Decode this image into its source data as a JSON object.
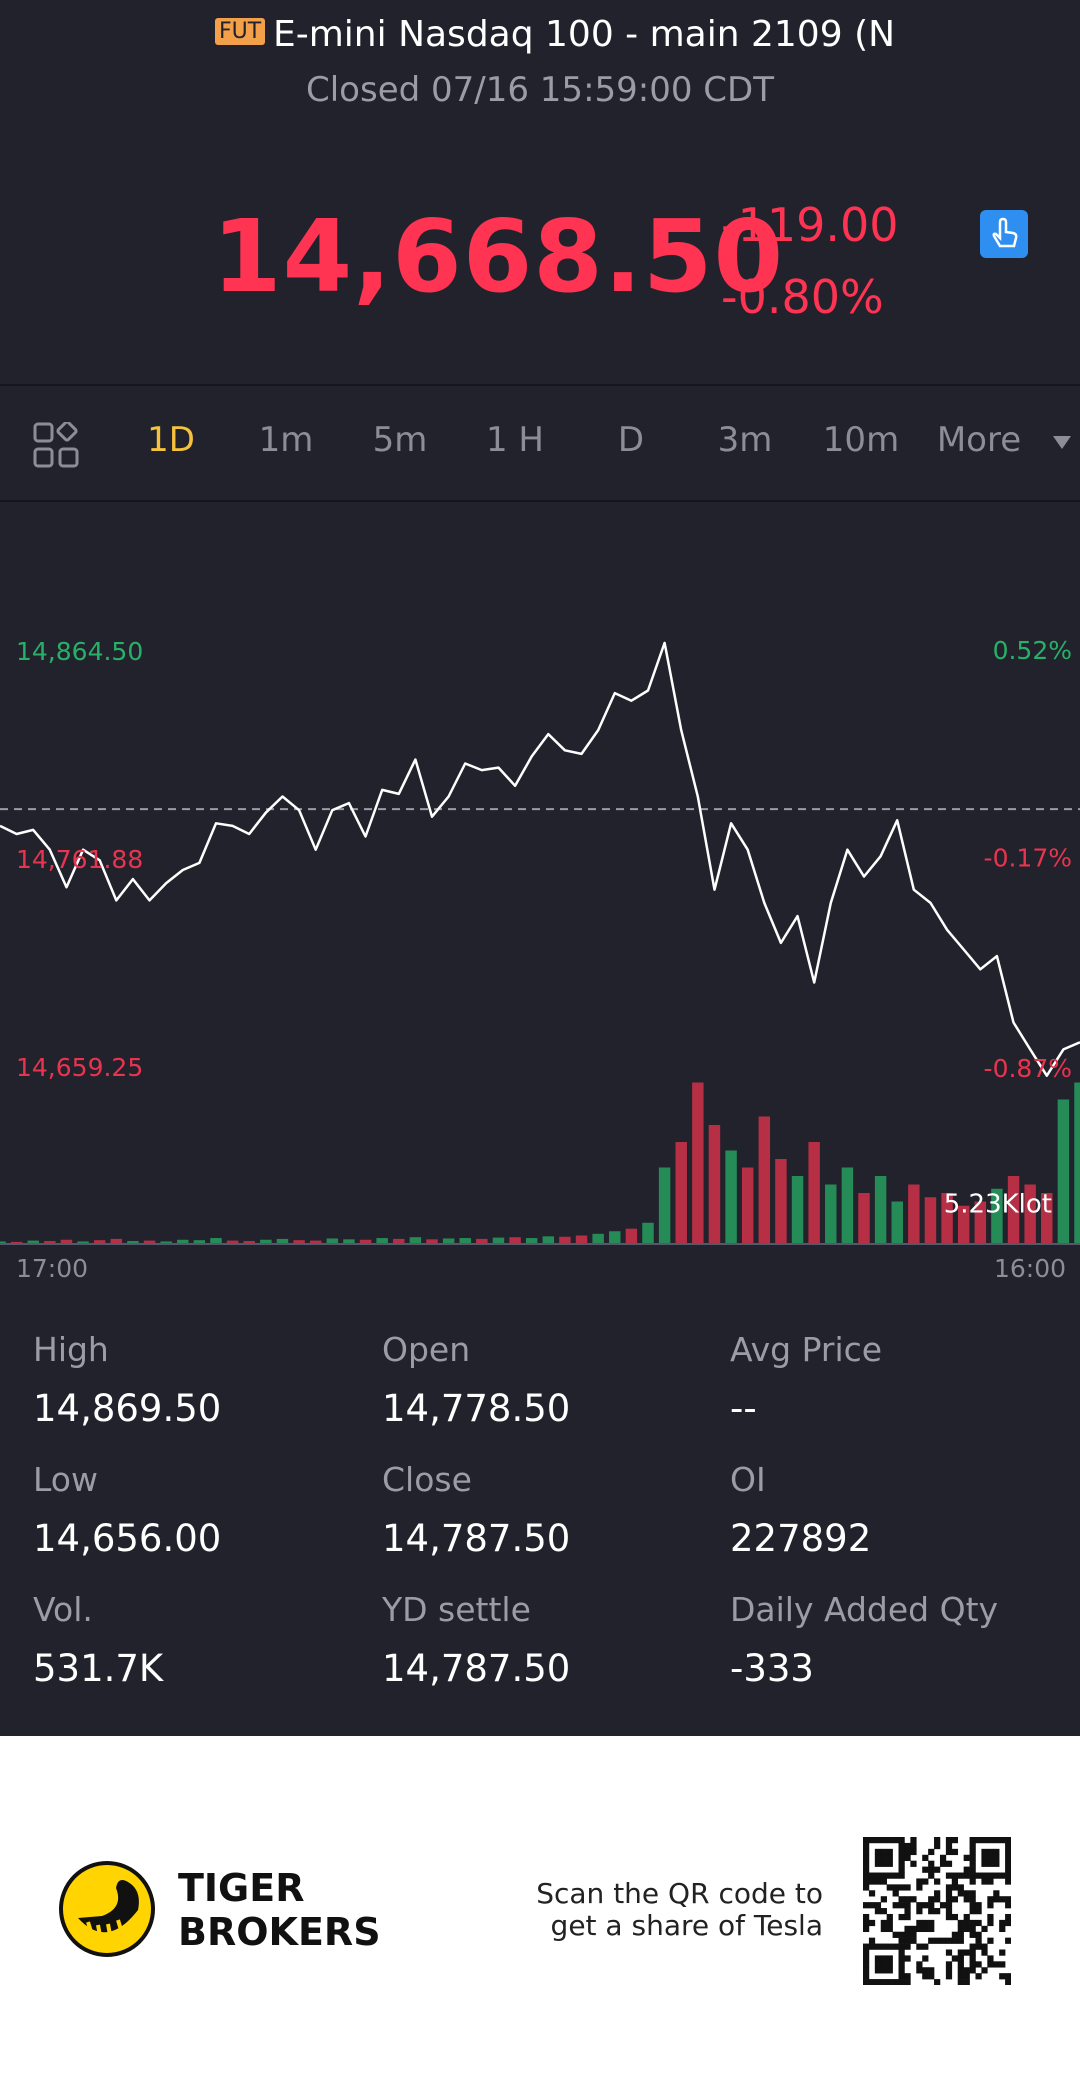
{
  "header": {
    "badge": "FUT",
    "title": "E-mini Nasdaq 100 - main 2109 (N",
    "status": "Closed 07/16 15:59:00 CDT"
  },
  "quote": {
    "price": "14,668.50",
    "change": "-119.00",
    "change_pct": "-0.80%"
  },
  "tabs": {
    "items": [
      "1D",
      "1m",
      "5m",
      "1 H",
      "D",
      "3m",
      "10m",
      "More"
    ],
    "active": 0
  },
  "chart_data": {
    "type": "line",
    "values": [
      14779.25,
      14775.25,
      14777.25,
      14767.5,
      14749,
      14767.5,
      14762.25,
      14742.5,
      14753,
      14742.5,
      14751,
      14757.5,
      14761,
      14780.5,
      14779.25,
      14775.25,
      14785.75,
      14793.75,
      14787,
      14767.5,
      14787,
      14790.5,
      14774,
      14797,
      14795,
      14812,
      14783.75,
      14793.75,
      14810,
      14806.75,
      14808,
      14799,
      14813.5,
      14824.5,
      14816.5,
      14814.75,
      14826.5,
      14844.75,
      14841,
      14846,
      14869.5,
      14826.5,
      14793.75,
      14747.75,
      14780.5,
      14767.5,
      14741.25,
      14721.5,
      14734.75,
      14702,
      14741.25,
      14767.5,
      14754.25,
      14764.25,
      14782,
      14747.75,
      14741.25,
      14728,
      14718.25,
      14708.5,
      14715,
      14682.25,
      14669,
      14656,
      14669,
      14672.5
    ],
    "color": "#ffffff",
    "ylim": [
      14573,
      14939
    ],
    "yticks": [
      {
        "value": 14864.5,
        "label": "14,864.50"
      },
      {
        "value": 14761.88,
        "label": "14,761.88"
      },
      {
        "value": 14659.25,
        "label": "14,659.25"
      }
    ],
    "y2lim": [
      -1.45,
      1.02
    ],
    "y2ticks": [
      {
        "value": 0.52,
        "label": "0.52%"
      },
      {
        "value": -0.17,
        "label": "-0.17%"
      },
      {
        "value": -0.87,
        "label": "-0.87%"
      }
    ],
    "reference_line": 14787.5,
    "x_labels": [
      "17:00",
      "16:00"
    ],
    "up_color": "#27b067",
    "down_color": "#e8344e",
    "volume": {
      "values": [
        300,
        250,
        400,
        350,
        500,
        300,
        450,
        600,
        350,
        400,
        300,
        500,
        450,
        700,
        400,
        350,
        500,
        600,
        450,
        400,
        650,
        550,
        500,
        700,
        600,
        800,
        550,
        650,
        700,
        600,
        750,
        800,
        700,
        900,
        850,
        1000,
        1200,
        1500,
        1800,
        2500,
        9000,
        12000,
        19000,
        14000,
        11000,
        9000,
        15000,
        10000,
        8000,
        12000,
        7000,
        9000,
        6000,
        8000,
        5000,
        7000,
        5500,
        6000,
        4500,
        5000,
        6500,
        8000,
        7000,
        6000,
        17000,
        19000
      ],
      "ylim": [
        0,
        20000
      ],
      "label": "5.23Klot"
    }
  },
  "stats": [
    {
      "label": "High",
      "value": "14,869.50"
    },
    {
      "label": "Open",
      "value": "14,778.50"
    },
    {
      "label": "Avg Price",
      "value": "--"
    },
    {
      "label": "Low",
      "value": "14,656.00"
    },
    {
      "label": "Close",
      "value": "14,787.50"
    },
    {
      "label": "OI",
      "value": "227892"
    },
    {
      "label": "Vol.",
      "value": "531.7K"
    },
    {
      "label": "YD settle",
      "value": "14,787.50"
    },
    {
      "label": "Daily Added Qty",
      "value": "-333"
    }
  ],
  "footer": {
    "brand": [
      "TIGER",
      "BROKERS"
    ],
    "cta": [
      "Scan the QR code to",
      "get a share of Tesla"
    ]
  }
}
